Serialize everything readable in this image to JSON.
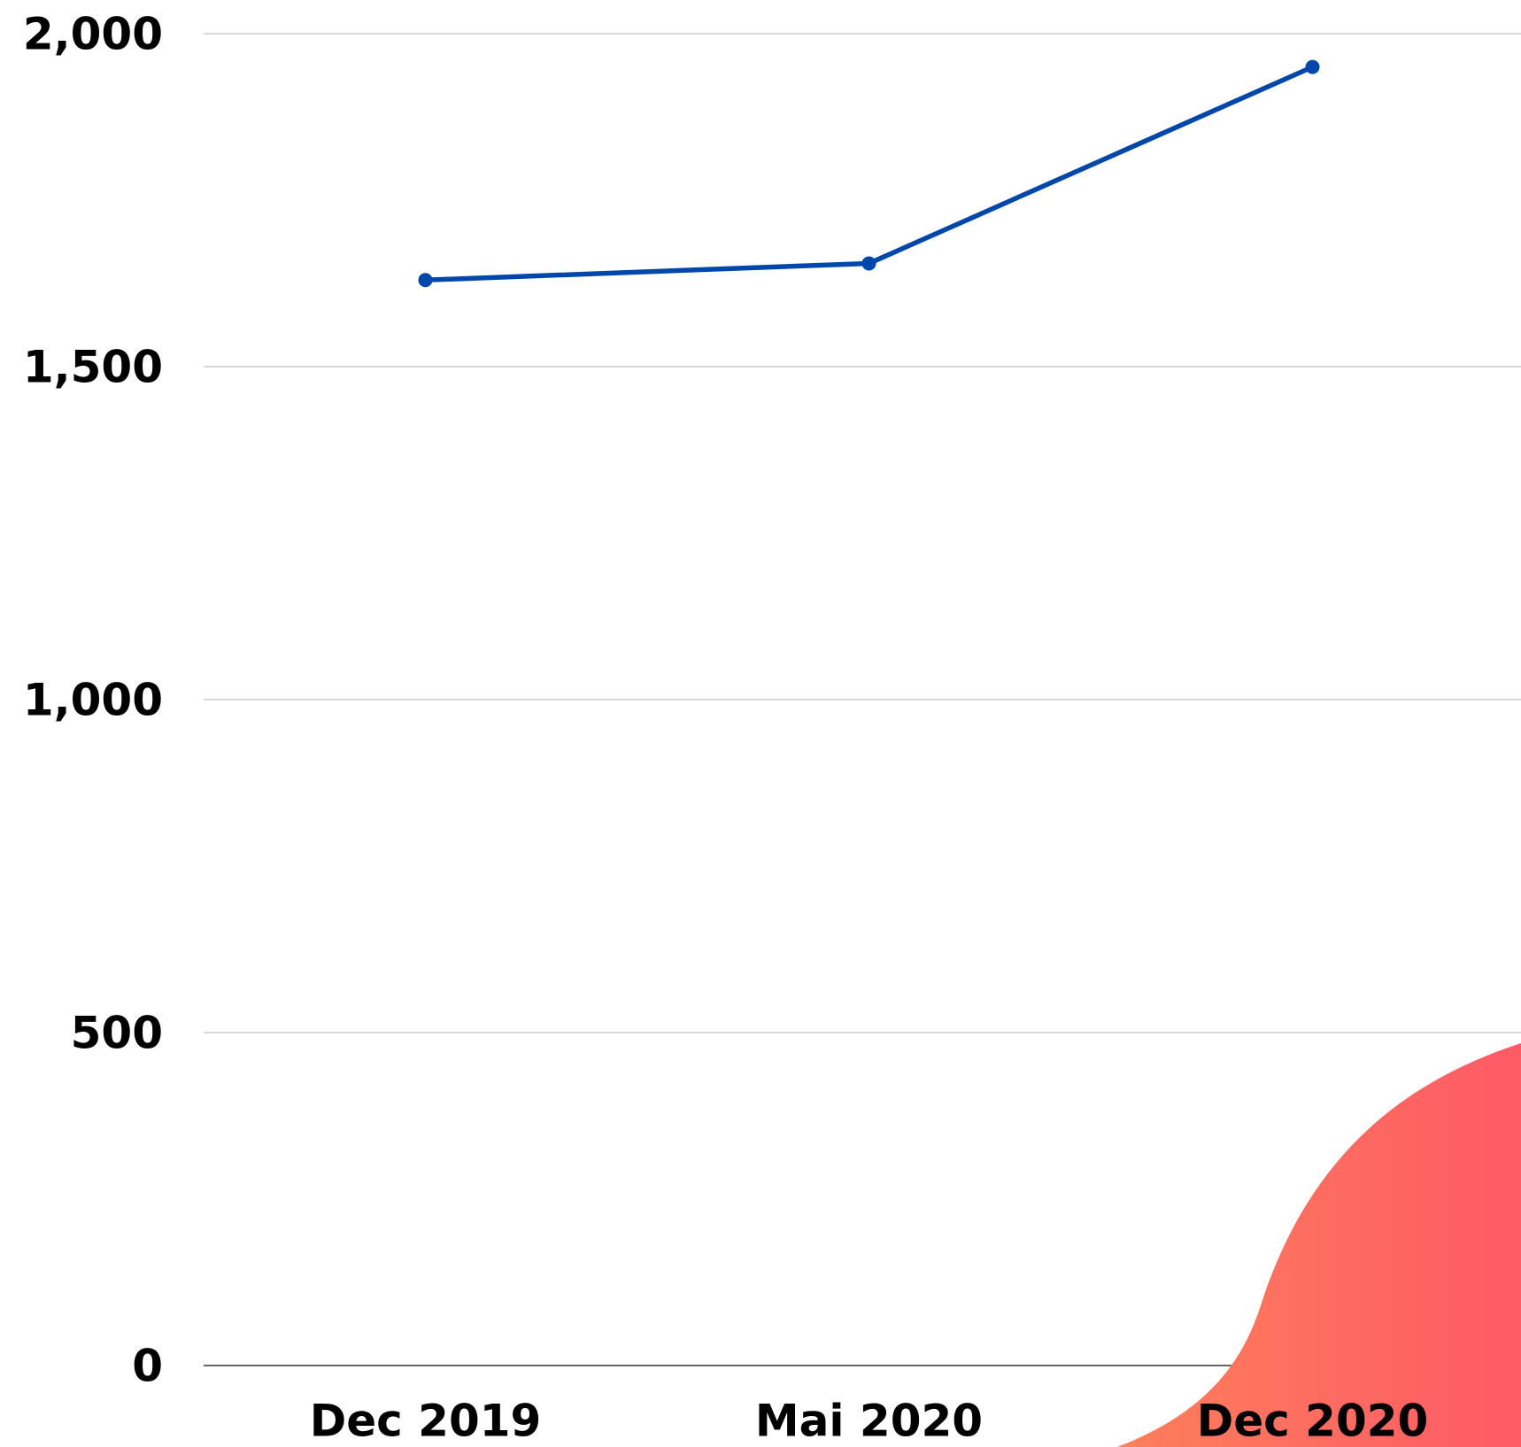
{
  "chart_data": {
    "type": "line",
    "categories": [
      "Dec 2019",
      "Mai 2020",
      "Dec 2020"
    ],
    "series": [
      {
        "color": "#0047ab",
        "values": [
          1630,
          1655,
          1950
        ]
      }
    ],
    "ylim": [
      0,
      2000
    ],
    "yticks": [
      0,
      500,
      {
        "value": 1000,
        "label": "1,000"
      },
      {
        "value": 1500,
        "label": "1,500"
      },
      {
        "value": 2000,
        "label": "2,000"
      }
    ],
    "grid": true
  }
}
